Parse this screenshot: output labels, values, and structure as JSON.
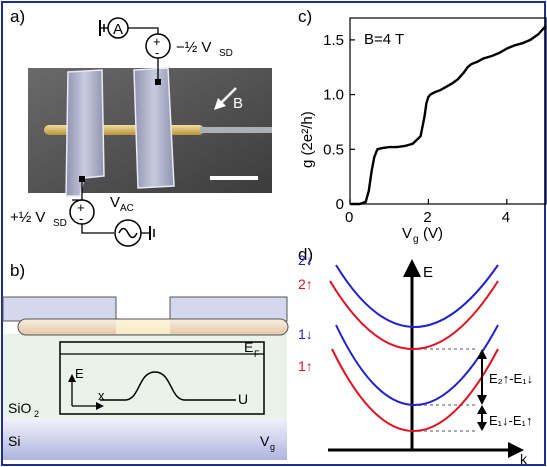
{
  "panel_labels": {
    "a": "a)",
    "b": "b)",
    "c": "c)",
    "d": "d)"
  },
  "panel_a": {
    "ammeter_symbol": "A",
    "plus": "+",
    "minus": "-",
    "bias_top": "−½ V",
    "bias_top_sub": "SD",
    "bias_bottom": "+½ V",
    "bias_bottom_sub": "SD",
    "vac": "V",
    "vac_sub": "AC",
    "field_label": "B",
    "colors": {
      "gate": "#bfc3d9",
      "nanowire": "#d9b76a",
      "substrate": "#4a4a4a"
    }
  },
  "panel_b": {
    "energy_axis": "E",
    "x_axis": "x",
    "fermi": "E",
    "fermi_sub": "F",
    "potential": "U",
    "oxide": "SiO",
    "oxide_sub": "2",
    "silicon": "Si",
    "gate_voltage": "V",
    "gate_voltage_sub": "g",
    "colors": {
      "electrodes": "#d0d6ec",
      "nanowire": "#f2dcc0",
      "oxide": "#e8f2e8",
      "silicon": "#c9cde8"
    }
  },
  "chart_data": {
    "type": "line",
    "annotation": "B=4 T",
    "xlabel": "V",
    "xlabel_sub": "g",
    "xlabel_unit": "(V)",
    "ylabel": "g (2e²/h)",
    "xlim": [
      0,
      5
    ],
    "ylim": [
      0,
      1.7
    ],
    "xticks": [
      0,
      2,
      4
    ],
    "yticks": [
      0,
      0.5,
      1.0,
      1.5
    ],
    "ytick_labels": [
      "0",
      "0.5",
      "1.0",
      "1.5"
    ],
    "series": [
      {
        "color": "#000000",
        "x": [
          0.0,
          0.25,
          0.4,
          0.48,
          0.55,
          0.62,
          0.7,
          0.8,
          1.0,
          1.2,
          1.4,
          1.6,
          1.8,
          1.9,
          1.95,
          2.0,
          2.05,
          2.15,
          2.3,
          2.45,
          2.6,
          2.75,
          2.9,
          3.0,
          3.1,
          3.25,
          3.4,
          3.6,
          3.8,
          4.0,
          4.2,
          4.4,
          4.6,
          4.8,
          5.0
        ],
        "y": [
          0.0,
          0.0,
          0.02,
          0.12,
          0.3,
          0.43,
          0.5,
          0.51,
          0.52,
          0.52,
          0.53,
          0.55,
          0.62,
          0.8,
          0.92,
          0.98,
          1.0,
          1.02,
          1.04,
          1.07,
          1.1,
          1.14,
          1.2,
          1.25,
          1.28,
          1.3,
          1.33,
          1.35,
          1.38,
          1.42,
          1.45,
          1.47,
          1.5,
          1.55,
          1.63
        ]
      }
    ]
  },
  "panel_d": {
    "energy_axis": "E",
    "k_axis": "k",
    "band_labels": [
      "2↓",
      "2↑",
      "1↓",
      "1↑"
    ],
    "gap_upper": "E₂↑-E₁↓",
    "gap_lower": "E₁↓-E₁↑",
    "colors": {
      "spin_down": "#2020d0",
      "spin_up": "#e01020",
      "dashed": "#aaaaaa"
    }
  }
}
